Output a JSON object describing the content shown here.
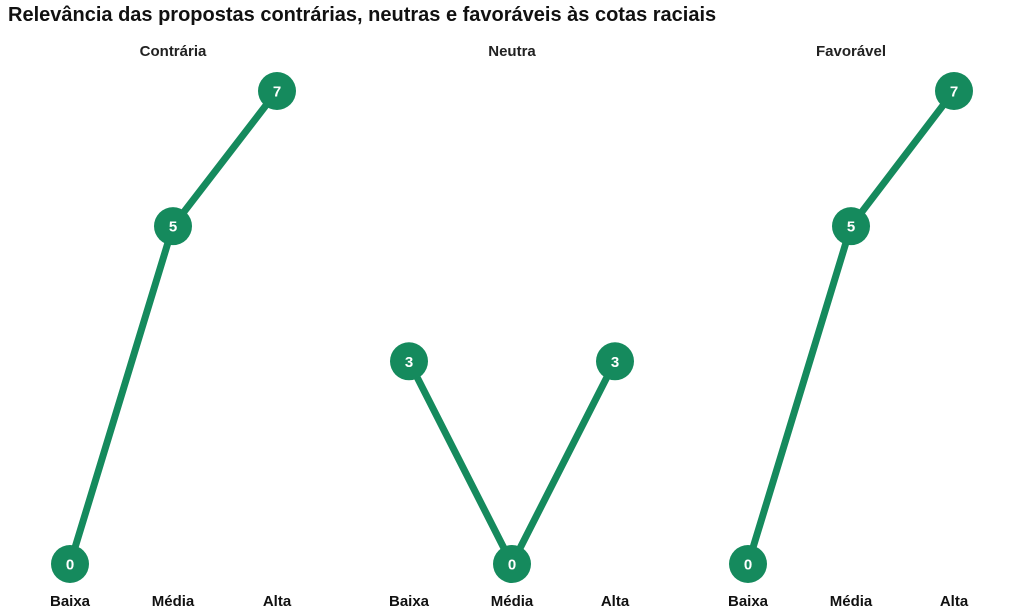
{
  "chart_data": {
    "type": "line",
    "title": "Relevância das propostas contrárias, neutras e favoráveis às cotas raciais",
    "categories": [
      "Baixa",
      "Média",
      "Alta"
    ],
    "ylim": [
      0,
      7
    ],
    "grid": false,
    "colors": {
      "line": "#158a5d",
      "point": "#158a5d",
      "point_label": "#ffffff"
    },
    "panels": [
      {
        "title": "Contrária",
        "values": [
          0,
          5,
          7
        ]
      },
      {
        "title": "Neutra",
        "values": [
          3,
          0,
          3
        ]
      },
      {
        "title": "Favorável",
        "values": [
          0,
          5,
          7
        ]
      }
    ]
  }
}
